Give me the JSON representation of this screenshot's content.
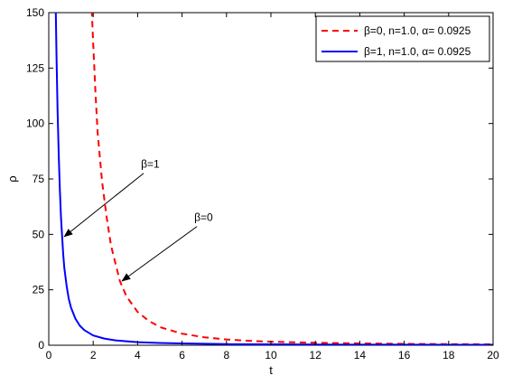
{
  "chart_data": {
    "type": "line",
    "title": "",
    "xlabel": "t",
    "ylabel": "ρ",
    "xlim": [
      0,
      20
    ],
    "ylim": [
      0,
      150
    ],
    "x_ticks": [
      "0",
      "2",
      "4",
      "6",
      "8",
      "10",
      "12",
      "14",
      "16",
      "18",
      "20"
    ],
    "y_ticks": [
      "0",
      "25",
      "50",
      "75",
      "100",
      "125",
      "150"
    ],
    "grid": false,
    "legend_position": "top-right",
    "series": [
      {
        "name": "β=0, n=1.0, α= 0.0925",
        "color": "#ff0000",
        "style": "dashed",
        "x": [
          1.8,
          1.9,
          2.0,
          2.1,
          2.2,
          2.4,
          2.6,
          2.8,
          3.0,
          3.2,
          3.5,
          4.0,
          4.5,
          5.0,
          6.0,
          7.0,
          8.0,
          9.0,
          10.0,
          12.0,
          14.0,
          16.0,
          18.0,
          20.0
        ],
        "y": [
          200.0,
          160.0,
          136.0,
          114.0,
          96.0,
          74.0,
          58.0,
          45.0,
          37.0,
          29.0,
          22.0,
          15.0,
          11.0,
          8.2,
          5.2,
          3.6,
          2.6,
          2.0,
          1.6,
          1.1,
          0.8,
          0.6,
          0.5,
          0.4
        ]
      },
      {
        "name": "β=1, n=1.0, α= 0.0925",
        "color": "#0000ff",
        "style": "solid",
        "x": [
          0.3,
          0.35,
          0.4,
          0.45,
          0.5,
          0.55,
          0.6,
          0.65,
          0.7,
          0.8,
          0.9,
          1.0,
          1.2,
          1.4,
          1.6,
          2.0,
          2.5,
          3.0,
          4.0,
          5.0,
          6.0,
          8.0,
          10.0,
          12.0,
          15.0,
          20.0
        ],
        "y": [
          160.0,
          130.0,
          105.0,
          85.0,
          70.0,
          58.0,
          49.0,
          41.0,
          35.0,
          27.0,
          21.0,
          17.0,
          12.0,
          8.8,
          6.8,
          4.4,
          3.0,
          2.2,
          1.4,
          1.0,
          0.8,
          0.5,
          0.4,
          0.3,
          0.25,
          0.2
        ]
      }
    ],
    "annotations": [
      {
        "label": "β=1",
        "point": [
          0.7,
          49
        ],
        "text_at": [
          4.15,
          80
        ]
      },
      {
        "label": "β=0",
        "point": [
          3.3,
          29
        ],
        "text_at": [
          6.55,
          56
        ]
      }
    ]
  }
}
